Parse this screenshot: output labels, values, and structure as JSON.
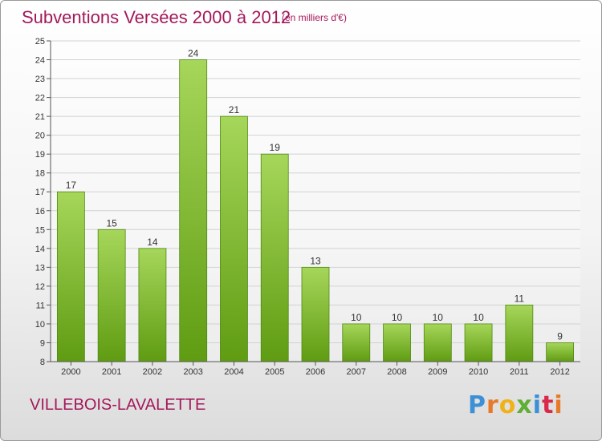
{
  "chart_data": {
    "type": "bar",
    "title": "Subventions Versées 2000 à 2012",
    "subtitle": "(en milliers d'€)",
    "categories": [
      "2000",
      "2001",
      "2002",
      "2003",
      "2004",
      "2005",
      "2006",
      "2007",
      "2008",
      "2009",
      "2010",
      "2011",
      "2012"
    ],
    "values": [
      17,
      15,
      14,
      24,
      21,
      19,
      13,
      10,
      10,
      10,
      10,
      11,
      9
    ],
    "ylim": [
      8,
      25
    ],
    "yticks": [
      8,
      9,
      10,
      11,
      12,
      13,
      14,
      15,
      16,
      17,
      18,
      19,
      20,
      21,
      22,
      23,
      24,
      25
    ],
    "grid": true,
    "colors": {
      "bar_light": "#a6d65a",
      "bar_dark": "#5f9c12",
      "bar_stroke": "#4f8a10",
      "title": "#a3195b"
    }
  },
  "commune": "VILLEBOIS-LAVALETTE",
  "logo": {
    "text": "Proxiti"
  }
}
